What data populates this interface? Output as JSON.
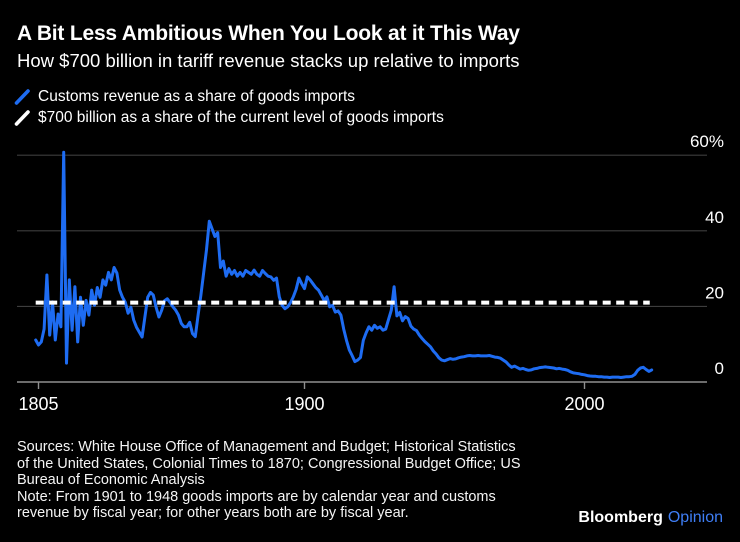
{
  "header": {
    "title": "A Bit Less Ambitious When You Look at it This Way",
    "subtitle": "How $700 billion in tariff revenue stacks up relative to imports"
  },
  "legend": {
    "items": [
      {
        "label": "Customs revenue as a share of goods imports",
        "color": "#1e6cf2",
        "style": "solid"
      },
      {
        "label": "$700 billion as a share of the current level of goods imports",
        "color": "#ffffff",
        "style": "dashed"
      }
    ]
  },
  "colors": {
    "background": "#000000",
    "series_blue": "#1e6cf2",
    "reference_white": "#ffffff",
    "gridline": "#3d3d3d",
    "axis_line": "#8f8f8f",
    "text": "#ffffff",
    "opinion_blue": "#3f7ef5"
  },
  "chart_data": {
    "type": "line",
    "title": "A Bit Less Ambitious When You Look at it This Way",
    "subtitle": "How $700 billion in tariff revenue stacks up relative to imports",
    "xlabel": "",
    "ylabel": "Customs revenue as a share of goods imports (%)",
    "xlim": [
      1804,
      2024
    ],
    "ylim": [
      0,
      60
    ],
    "grid": true,
    "legend_position": "top-left",
    "x_axis": {
      "tick_values": [
        1805,
        1900,
        2000
      ],
      "tick_labels": [
        "1805",
        "1900",
        "2000"
      ]
    },
    "y_axis": {
      "tick_values": [
        0,
        20,
        40,
        60
      ],
      "tick_labels": [
        "0",
        "20",
        "40",
        "60%"
      ]
    },
    "reference_line": {
      "name": "$700 billion as a share of the current level of goods imports",
      "value": 21,
      "color": "#ffffff",
      "style": "dashed"
    },
    "series": [
      {
        "name": "Customs revenue as a share of goods imports",
        "color": "#1e6cf2",
        "style": "solid",
        "points": [
          [
            1804,
            11.1
          ],
          [
            1805,
            9.8
          ],
          [
            1806,
            10.6
          ],
          [
            1807,
            14.0
          ],
          [
            1808,
            28.3
          ],
          [
            1809,
            12.4
          ],
          [
            1810,
            21.2
          ],
          [
            1811,
            11.1
          ],
          [
            1812,
            18.0
          ],
          [
            1813,
            14.6
          ],
          [
            1814,
            60.8
          ],
          [
            1815,
            5.0
          ],
          [
            1816,
            27.0
          ],
          [
            1817,
            13.7
          ],
          [
            1818,
            25.2
          ],
          [
            1819,
            10.6
          ],
          [
            1820,
            22.4
          ],
          [
            1821,
            15.0
          ],
          [
            1822,
            21.6
          ],
          [
            1823,
            17.7
          ],
          [
            1824,
            24.3
          ],
          [
            1825,
            20.3
          ],
          [
            1826,
            25.0
          ],
          [
            1827,
            22.4
          ],
          [
            1828,
            27.0
          ],
          [
            1829,
            25.6
          ],
          [
            1830,
            29.0
          ],
          [
            1831,
            27.0
          ],
          [
            1832,
            30.3
          ],
          [
            1833,
            28.8
          ],
          [
            1834,
            24.3
          ],
          [
            1835,
            22.4
          ],
          [
            1836,
            21.1
          ],
          [
            1837,
            18.2
          ],
          [
            1838,
            19.8
          ],
          [
            1839,
            16.4
          ],
          [
            1840,
            14.5
          ],
          [
            1841,
            13.2
          ],
          [
            1842,
            11.9
          ],
          [
            1843,
            17.2
          ],
          [
            1844,
            22.4
          ],
          [
            1845,
            23.7
          ],
          [
            1846,
            23.0
          ],
          [
            1847,
            19.8
          ],
          [
            1848,
            17.2
          ],
          [
            1849,
            19.0
          ],
          [
            1850,
            21.5
          ],
          [
            1851,
            22.0
          ],
          [
            1852,
            21.0
          ],
          [
            1853,
            19.9
          ],
          [
            1854,
            19.0
          ],
          [
            1855,
            17.7
          ],
          [
            1856,
            15.5
          ],
          [
            1857,
            14.6
          ],
          [
            1858,
            14.6
          ],
          [
            1859,
            15.8
          ],
          [
            1860,
            12.8
          ],
          [
            1861,
            12.0
          ],
          [
            1862,
            17.7
          ],
          [
            1863,
            23.0
          ],
          [
            1864,
            29.0
          ],
          [
            1865,
            35.0
          ],
          [
            1866,
            42.5
          ],
          [
            1867,
            40.5
          ],
          [
            1868,
            38.5
          ],
          [
            1869,
            39.5
          ],
          [
            1870,
            30.3
          ],
          [
            1871,
            32.0
          ],
          [
            1872,
            28.0
          ],
          [
            1873,
            30.0
          ],
          [
            1874,
            28.5
          ],
          [
            1875,
            29.5
          ],
          [
            1876,
            28.0
          ],
          [
            1877,
            29.0
          ],
          [
            1878,
            28.0
          ],
          [
            1879,
            29.5
          ],
          [
            1880,
            29.0
          ],
          [
            1881,
            28.5
          ],
          [
            1882,
            29.6
          ],
          [
            1883,
            28.5
          ],
          [
            1884,
            28.0
          ],
          [
            1885,
            29.5
          ],
          [
            1886,
            28.7
          ],
          [
            1887,
            28.0
          ],
          [
            1888,
            27.8
          ],
          [
            1889,
            26.9
          ],
          [
            1890,
            27.5
          ],
          [
            1891,
            22.5
          ],
          [
            1892,
            20.3
          ],
          [
            1893,
            19.4
          ],
          [
            1894,
            19.9
          ],
          [
            1895,
            21.0
          ],
          [
            1896,
            22.5
          ],
          [
            1897,
            24.5
          ],
          [
            1898,
            27.5
          ],
          [
            1899,
            26.0
          ],
          [
            1900,
            24.7
          ],
          [
            1901,
            27.8
          ],
          [
            1902,
            27.0
          ],
          [
            1903,
            26.0
          ],
          [
            1904,
            25.0
          ],
          [
            1905,
            24.3
          ],
          [
            1906,
            23.0
          ],
          [
            1907,
            21.6
          ],
          [
            1908,
            22.5
          ],
          [
            1909,
            19.9
          ],
          [
            1910,
            20.3
          ],
          [
            1911,
            18.5
          ],
          [
            1912,
            18.8
          ],
          [
            1913,
            17.7
          ],
          [
            1914,
            14.0
          ],
          [
            1915,
            11.0
          ],
          [
            1916,
            8.5
          ],
          [
            1917,
            7.0
          ],
          [
            1918,
            5.4
          ],
          [
            1919,
            5.8
          ],
          [
            1920,
            6.5
          ],
          [
            1921,
            11.0
          ],
          [
            1922,
            13.0
          ],
          [
            1923,
            14.6
          ],
          [
            1924,
            13.7
          ],
          [
            1925,
            15.0
          ],
          [
            1926,
            14.2
          ],
          [
            1927,
            14.6
          ],
          [
            1928,
            13.7
          ],
          [
            1929,
            14.0
          ],
          [
            1930,
            16.5
          ],
          [
            1931,
            19.0
          ],
          [
            1932,
            25.2
          ],
          [
            1933,
            17.5
          ],
          [
            1934,
            18.4
          ],
          [
            1935,
            16.2
          ],
          [
            1936,
            17.3
          ],
          [
            1937,
            16.8
          ],
          [
            1938,
            14.8
          ],
          [
            1939,
            14.0
          ],
          [
            1940,
            13.6
          ],
          [
            1941,
            12.4
          ],
          [
            1942,
            11.5
          ],
          [
            1943,
            10.7
          ],
          [
            1944,
            10.0
          ],
          [
            1945,
            9.3
          ],
          [
            1946,
            8.2
          ],
          [
            1947,
            7.4
          ],
          [
            1948,
            6.4
          ],
          [
            1949,
            5.8
          ],
          [
            1950,
            5.6
          ],
          [
            1951,
            5.9
          ],
          [
            1952,
            6.2
          ],
          [
            1953,
            6.0
          ],
          [
            1954,
            6.1
          ],
          [
            1955,
            6.4
          ],
          [
            1956,
            6.6
          ],
          [
            1957,
            6.7
          ],
          [
            1958,
            6.9
          ],
          [
            1959,
            7.0
          ],
          [
            1960,
            6.9
          ],
          [
            1961,
            6.9
          ],
          [
            1962,
            7.0
          ],
          [
            1963,
            6.9
          ],
          [
            1964,
            6.9
          ],
          [
            1965,
            6.9
          ],
          [
            1966,
            7.0
          ],
          [
            1967,
            6.8
          ],
          [
            1968,
            6.6
          ],
          [
            1969,
            6.5
          ],
          [
            1970,
            6.3
          ],
          [
            1971,
            5.8
          ],
          [
            1972,
            5.3
          ],
          [
            1973,
            4.5
          ],
          [
            1974,
            3.9
          ],
          [
            1975,
            4.2
          ],
          [
            1976,
            3.8
          ],
          [
            1977,
            3.4
          ],
          [
            1978,
            3.6
          ],
          [
            1979,
            3.3
          ],
          [
            1980,
            3.1
          ],
          [
            1981,
            3.2
          ],
          [
            1982,
            3.5
          ],
          [
            1983,
            3.6
          ],
          [
            1984,
            3.8
          ],
          [
            1985,
            3.9
          ],
          [
            1986,
            4.0
          ],
          [
            1987,
            3.9
          ],
          [
            1988,
            3.8
          ],
          [
            1989,
            3.7
          ],
          [
            1990,
            3.5
          ],
          [
            1991,
            3.6
          ],
          [
            1992,
            3.4
          ],
          [
            1993,
            3.3
          ],
          [
            1994,
            3.1
          ],
          [
            1995,
            2.7
          ],
          [
            1996,
            2.4
          ],
          [
            1997,
            2.3
          ],
          [
            1998,
            2.2
          ],
          [
            1999,
            2.0
          ],
          [
            2000,
            1.9
          ],
          [
            2001,
            1.7
          ],
          [
            2002,
            1.6
          ],
          [
            2003,
            1.5
          ],
          [
            2004,
            1.5
          ],
          [
            2005,
            1.4
          ],
          [
            2006,
            1.4
          ],
          [
            2007,
            1.3
          ],
          [
            2008,
            1.3
          ],
          [
            2009,
            1.2
          ],
          [
            2010,
            1.3
          ],
          [
            2011,
            1.3
          ],
          [
            2012,
            1.3
          ],
          [
            2013,
            1.2
          ],
          [
            2014,
            1.3
          ],
          [
            2015,
            1.4
          ],
          [
            2016,
            1.4
          ],
          [
            2017,
            1.5
          ],
          [
            2018,
            2.0
          ],
          [
            2019,
            3.1
          ],
          [
            2020,
            3.7
          ],
          [
            2021,
            3.9
          ],
          [
            2022,
            3.3
          ],
          [
            2023,
            2.8
          ],
          [
            2024,
            3.2
          ]
        ]
      }
    ]
  },
  "footer": {
    "lines": [
      "Sources: White House Office of Management and Budget; Historical Statistics",
      "of the United States, Colonial Times to 1870; Congressional Budget Office; US",
      "Bureau of Economic Analysis",
      "Note: From 1901 to 1948 goods imports are by calendar year and customs",
      "revenue by fiscal year; for other years both are by fiscal year."
    ],
    "logo": {
      "bloomberg": "Bloomberg",
      "opinion": "Opinion"
    }
  }
}
